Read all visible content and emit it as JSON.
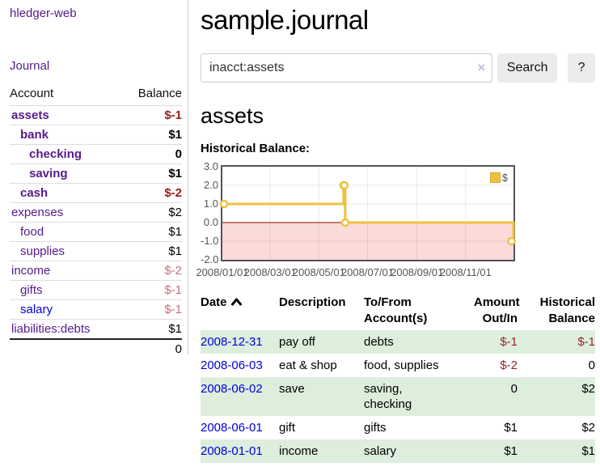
{
  "app_title": "hledger-web",
  "sidebar": {
    "journal_link": "Journal",
    "accounts_table": {
      "account_header": "Account",
      "balance_header": "Balance",
      "rows": [
        {
          "name": "assets",
          "balance": "$-1",
          "level": 1,
          "bold": true,
          "neg": "strong"
        },
        {
          "name": "bank",
          "balance": "$1",
          "level": 2,
          "bold": true,
          "neg": "none"
        },
        {
          "name": "checking",
          "balance": "0",
          "level": 3,
          "bold": true,
          "neg": "none"
        },
        {
          "name": "saving",
          "balance": "$1",
          "level": 3,
          "bold": true,
          "neg": "none"
        },
        {
          "name": "cash",
          "balance": "$-2",
          "level": 2,
          "bold": true,
          "neg": "strong"
        },
        {
          "name": "expenses",
          "balance": "$2",
          "level": 1,
          "bold": false,
          "neg": "none"
        },
        {
          "name": "food",
          "balance": "$1",
          "level": 2,
          "bold": false,
          "neg": "none"
        },
        {
          "name": "supplies",
          "balance": "$1",
          "level": 2,
          "bold": false,
          "neg": "none"
        },
        {
          "name": "income",
          "balance": "$-2",
          "level": 1,
          "bold": false,
          "neg": "soft"
        },
        {
          "name": "gifts",
          "balance": "$-1",
          "level": 2,
          "bold": false,
          "neg": "soft"
        },
        {
          "name": "salary",
          "balance": "$-1",
          "level": 2,
          "bold": false,
          "neg": "soft",
          "link_state": "unvisited"
        },
        {
          "name": "liabilities:debts",
          "balance": "$1",
          "level": 1,
          "bold": false,
          "neg": "none"
        }
      ],
      "total": "0"
    }
  },
  "header": {
    "title": "sample.journal"
  },
  "search": {
    "value": "inacct:assets",
    "clear_label": "×",
    "search_button": "Search",
    "help_button": "?"
  },
  "account_page": {
    "heading": "assets",
    "chart_title": "Historical Balance:"
  },
  "chart_data": {
    "type": "line",
    "title": "Historical Balance",
    "step": true,
    "series": [
      {
        "name": "$",
        "color": "#edc240",
        "points": [
          {
            "date": "2008-01-01",
            "value": 1
          },
          {
            "date": "2008-06-01",
            "value": 2
          },
          {
            "date": "2008-06-02",
            "value": 2
          },
          {
            "date": "2008-06-03",
            "value": 0
          },
          {
            "date": "2008-12-31",
            "value": -1
          }
        ]
      }
    ],
    "x_range": [
      "2008-01-01",
      "2008-12-31"
    ],
    "xticks": [
      "2008/01/01",
      "2008/03/01",
      "2008/05/01",
      "2008/07/01",
      "2008/09/01",
      "2008/11/01"
    ],
    "yticks": [
      "3.0",
      "2.0",
      "1.0",
      "0.0",
      "-1.0",
      "-2.0"
    ],
    "ylim": [
      -2,
      3
    ],
    "grid": true,
    "negative_region_color": "#fbdada",
    "zero_line_color": "#8b0000",
    "legend": {
      "label": "$",
      "position": "top-right"
    }
  },
  "register": {
    "headers": {
      "date": "Date",
      "description": "Description",
      "accounts_line1": "To/From",
      "accounts_line2": "Account(s)",
      "amount_line1": "Amount",
      "amount_line2": "Out/In",
      "balance_line1": "Historical",
      "balance_line2": "Balance"
    },
    "rows": [
      {
        "date": "2008-12-31",
        "description": "pay off",
        "accounts": [
          "debts"
        ],
        "amount": "$-1",
        "amount_neg": true,
        "balance": "$-1",
        "balance_neg": true,
        "shaded": true
      },
      {
        "date": "2008-06-03",
        "description": "eat & shop",
        "accounts": [
          "food, supplies"
        ],
        "amount": "$-2",
        "amount_neg": true,
        "balance": "0",
        "balance_neg": false,
        "shaded": false
      },
      {
        "date": "2008-06-02",
        "description": "save",
        "accounts": [
          "saving,",
          "checking"
        ],
        "amount": "0",
        "amount_neg": false,
        "balance": "$2",
        "balance_neg": false,
        "shaded": true
      },
      {
        "date": "2008-06-01",
        "description": "gift",
        "accounts": [
          "gifts"
        ],
        "amount": "$1",
        "amount_neg": false,
        "balance": "$2",
        "balance_neg": false,
        "shaded": false
      },
      {
        "date": "2008-01-01",
        "description": "income",
        "accounts": [
          "salary"
        ],
        "amount": "$1",
        "amount_neg": false,
        "balance": "$1",
        "balance_neg": false,
        "shaded": true
      }
    ]
  },
  "colors": {
    "link_purple": "#551a8b",
    "link_blue": "#0000dd",
    "negative_strong": "#9b1c1c",
    "negative_soft": "#c4717c",
    "negative_table": "#9e2323",
    "row_green": "#ddeedd",
    "series_gold": "#edc240",
    "negative_region_pink": "#fbdada",
    "zero_line_red": "#8b0000"
  }
}
